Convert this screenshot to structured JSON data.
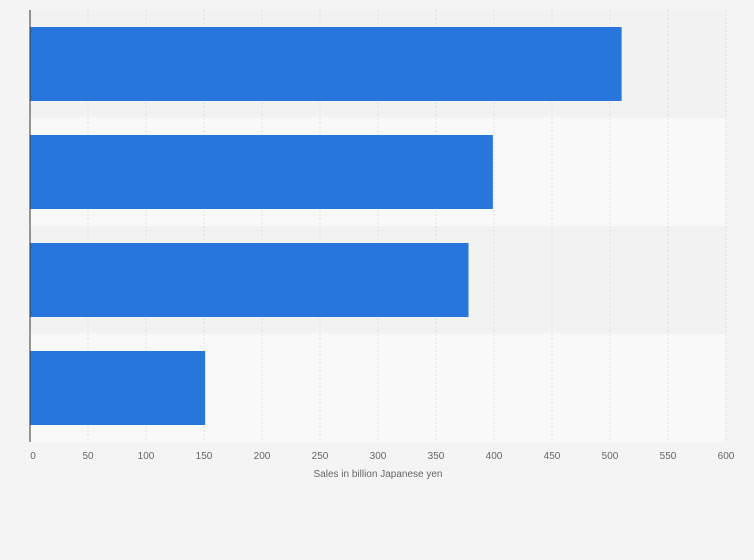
{
  "chart_data": {
    "type": "bar",
    "orientation": "horizontal",
    "categories": [
      "",
      "",
      "",
      ""
    ],
    "values": [
      510,
      399,
      378,
      151
    ],
    "xlabel": "Sales in billion Japanese yen",
    "ylabel": "",
    "xlim": [
      0,
      600
    ],
    "xticks": [
      0,
      50,
      100,
      150,
      200,
      250,
      300,
      350,
      400,
      450,
      500,
      550,
      600
    ],
    "grid": true,
    "legend": "none",
    "colors": {
      "bar": "#2776dc",
      "background": "#f4f4f4",
      "band_dark": "#f2f2f2",
      "band_light": "#f9f9f9",
      "grid": "#dedede",
      "axis": "#333333",
      "text": "#666666"
    }
  }
}
